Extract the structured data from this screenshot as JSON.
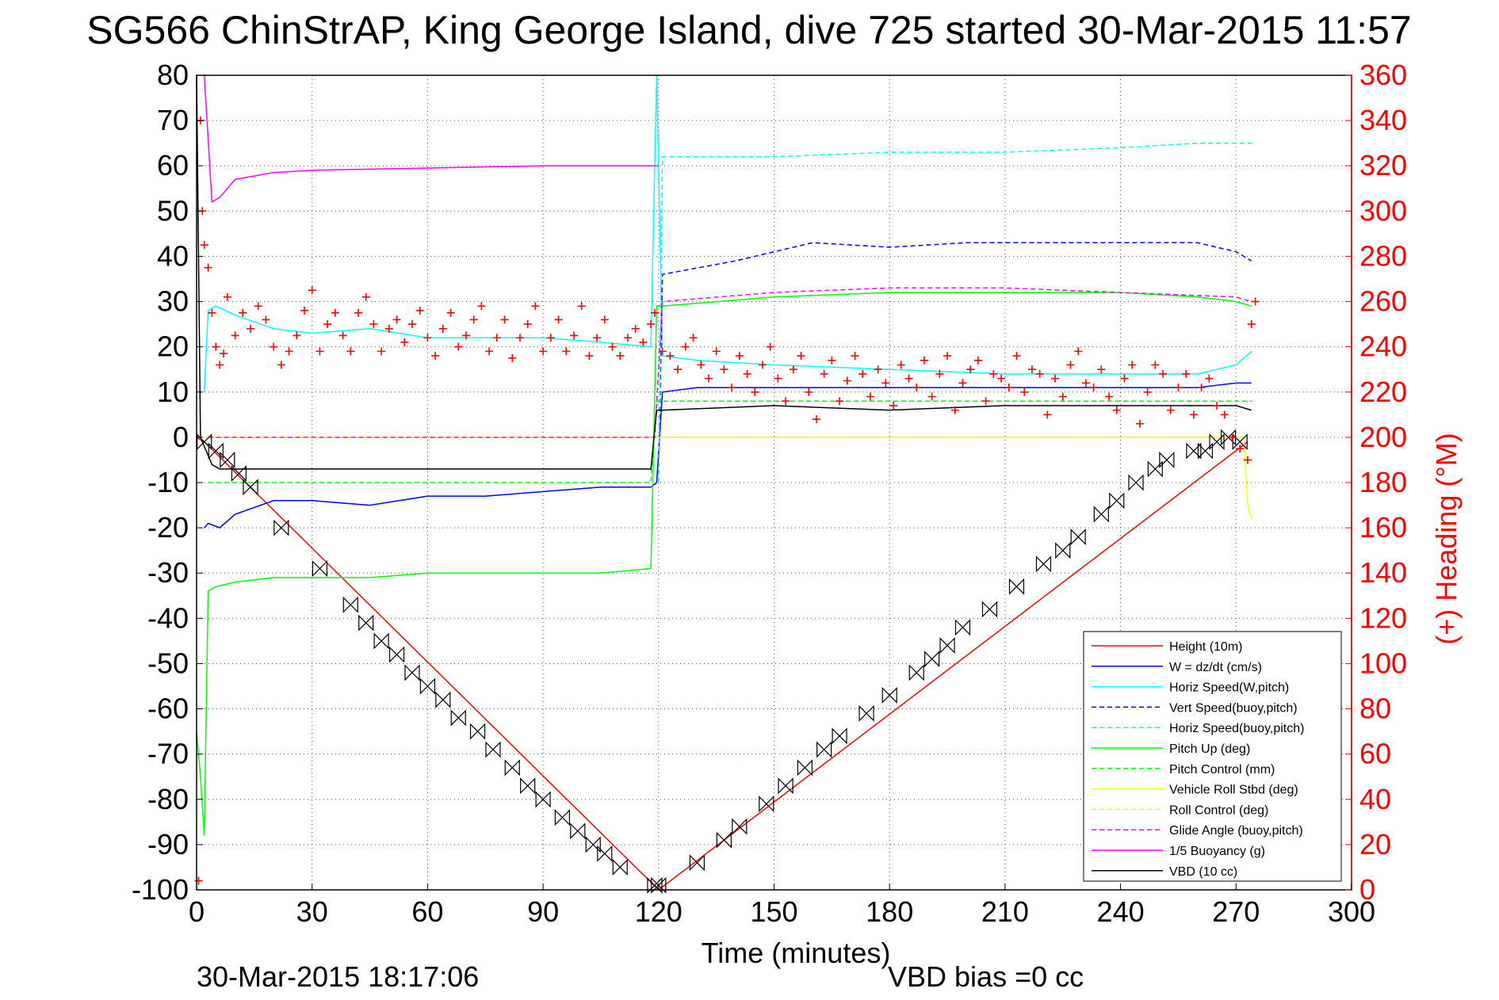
{
  "chart_data": {
    "type": "line",
    "title": "SG566 ChinStrAP, King George Island, dive 725 started 30-Mar-2015 11:57",
    "xlabel": "Time (minutes)",
    "ylabel": "",
    "y2label": "(+) Heading (°M)",
    "xlim": [
      0,
      300
    ],
    "ylim": [
      -100,
      80
    ],
    "y2lim": [
      0,
      360
    ],
    "xticks": [
      0,
      30,
      60,
      90,
      120,
      150,
      180,
      210,
      240,
      270,
      300
    ],
    "yticks": [
      80,
      70,
      60,
      50,
      40,
      30,
      20,
      10,
      0,
      -10,
      -20,
      -30,
      -40,
      -50,
      -60,
      -70,
      -80,
      -90,
      -100
    ],
    "y2ticks": [
      360,
      340,
      320,
      300,
      280,
      260,
      240,
      220,
      200,
      180,
      160,
      140,
      120,
      100,
      80,
      60,
      40,
      20,
      0
    ],
    "grid": true,
    "legend_position": "lower-right",
    "footer_left": "30-Mar-2015 18:17:06",
    "footer_right": "VBD bias =0 cc",
    "colors": {
      "height": "#ff0000",
      "w": "#0000ff",
      "horiz_speed": "#00ffff",
      "pitch": "#00ff00",
      "roll": "#ffff00",
      "buoyancy": "#ff00ff",
      "vbd": "#000000",
      "heading": "#ff0000"
    },
    "series": [
      {
        "name": "Height (10m)",
        "color": "#ff0000",
        "dash": "",
        "x": [
          0,
          2,
          120,
          273
        ],
        "y": [
          0,
          -1,
          -100,
          -1
        ]
      },
      {
        "name": "W = dz/dt (cm/s)",
        "color": "#0000ff",
        "dash": "",
        "x": [
          2,
          3,
          6,
          10,
          20,
          30,
          45,
          60,
          75,
          90,
          105,
          118,
          119.5,
          121,
          130,
          150,
          180,
          210,
          240,
          260,
          270,
          274
        ],
        "y": [
          -20,
          -19,
          -20,
          -17,
          -14,
          -14,
          -15,
          -13,
          -13,
          -12,
          -11,
          -11,
          -10,
          10,
          11,
          11,
          11,
          11,
          11,
          11,
          12,
          12
        ]
      },
      {
        "name": "Horiz Speed(W,pitch)",
        "color": "#00ffff",
        "dash": "",
        "x": [
          2,
          3,
          5,
          10,
          20,
          30,
          45,
          60,
          75,
          90,
          105,
          118,
          119.5,
          121,
          130,
          150,
          180,
          210,
          240,
          260,
          270,
          274
        ],
        "y": [
          10,
          28,
          29,
          27,
          24,
          23,
          24,
          22,
          22,
          22,
          21,
          20,
          80,
          18,
          17,
          16,
          15,
          14,
          14,
          14,
          16,
          19
        ]
      },
      {
        "name": "Vert Speed(buoy,pitch)",
        "color": "#0000ff",
        "dash": "6 4",
        "x": [
          120,
          121,
          140,
          160,
          180,
          200,
          220,
          240,
          260,
          270,
          274
        ],
        "y": [
          -10,
          36,
          39,
          43,
          42,
          43,
          43,
          43,
          43,
          41,
          39
        ]
      },
      {
        "name": "Horiz Speed(buoy,pitch)",
        "color": "#00ffff",
        "dash": "6 4",
        "x": [
          120,
          121,
          150,
          180,
          210,
          240,
          260,
          270,
          274
        ],
        "y": [
          -10,
          62,
          62,
          63,
          63,
          64,
          65,
          65,
          65
        ]
      },
      {
        "name": "Pitch Up (deg)",
        "color": "#00ff00",
        "dash": "",
        "x": [
          0,
          1,
          2,
          3,
          5,
          10,
          20,
          30,
          45,
          60,
          75,
          90,
          105,
          118,
          119.5,
          121,
          150,
          180,
          210,
          240,
          260,
          270,
          274
        ],
        "y": [
          -65,
          -75,
          -88,
          -34,
          -33,
          -32,
          -31,
          -31,
          -31,
          -30,
          -30,
          -30,
          -30,
          -29,
          29,
          29,
          31,
          32,
          32,
          32,
          31,
          30,
          29
        ]
      },
      {
        "name": "Pitch Control (mm)",
        "color": "#00ff00",
        "dash": "6 4",
        "x": [
          3,
          20,
          60,
          118,
          119.5,
          121,
          180,
          240,
          274
        ],
        "y": [
          -10,
          -10,
          -10,
          -10,
          8,
          8,
          8,
          8,
          8
        ]
      },
      {
        "name": "Vehicle Roll Stbd (deg)",
        "color": "#ffff00",
        "dash": "",
        "x": [
          2,
          272,
          273,
          274
        ],
        "y": [
          0,
          0,
          -15,
          -18
        ]
      },
      {
        "name": "Roll Control (deg)",
        "color": "#ffff00",
        "dash": "6 4",
        "x": [
          2,
          272
        ],
        "y": [
          0,
          0
        ]
      },
      {
        "name": "Glide Angle (buoy,pitch)",
        "color": "#ff00ff",
        "dash": "6 4",
        "x": [
          3,
          119,
          121,
          150,
          180,
          210,
          240,
          270,
          274
        ],
        "y": [
          0,
          0,
          30,
          32,
          33,
          33,
          32,
          31,
          30
        ]
      },
      {
        "name": "1/5 Buoyancy (g)",
        "color": "#ff00ff",
        "dash": "",
        "x": [
          2,
          4,
          6,
          10,
          20,
          30,
          60,
          90,
          119,
          120
        ],
        "y": [
          80,
          52,
          53,
          57,
          58.5,
          59,
          59.5,
          60,
          60,
          60
        ]
      },
      {
        "name": "VBD (10 cc)",
        "color": "#000000",
        "dash": "",
        "x": [
          0,
          1,
          2,
          4,
          6,
          30,
          60,
          90,
          118,
          119.5,
          121,
          150,
          180,
          210,
          240,
          270,
          274
        ],
        "y": [
          80,
          0,
          -2,
          -6,
          -7,
          -7,
          -7,
          -7,
          -7,
          6,
          6,
          7,
          6,
          7,
          7,
          7,
          6
        ]
      }
    ],
    "heading_points": {
      "name": "(+) Heading (°M)",
      "axis": "right",
      "marker": "+",
      "x": [
        0.5,
        1,
        1.5,
        2,
        3,
        4,
        5,
        6,
        7,
        8,
        10,
        12,
        14,
        16,
        18,
        20,
        22,
        24,
        26,
        28,
        30,
        32,
        34,
        36,
        38,
        40,
        42,
        44,
        46,
        48,
        50,
        52,
        54,
        56,
        58,
        60,
        62,
        64,
        66,
        68,
        70,
        72,
        74,
        76,
        78,
        80,
        82,
        84,
        86,
        88,
        90,
        92,
        94,
        96,
        98,
        100,
        102,
        104,
        106,
        108,
        110,
        112,
        114,
        116,
        118,
        119,
        121,
        123,
        125,
        127,
        129,
        131,
        133,
        135,
        137,
        139,
        141,
        143,
        145,
        147,
        149,
        151,
        153,
        155,
        157,
        159,
        161,
        163,
        165,
        167,
        169,
        171,
        173,
        175,
        177,
        179,
        181,
        183,
        185,
        187,
        189,
        191,
        193,
        195,
        197,
        199,
        201,
        203,
        205,
        207,
        209,
        211,
        213,
        215,
        217,
        219,
        221,
        223,
        225,
        227,
        229,
        231,
        233,
        235,
        237,
        239,
        241,
        243,
        245,
        247,
        249,
        251,
        253,
        255,
        257,
        259,
        261,
        263,
        265,
        267,
        269,
        271,
        273,
        274,
        275
      ],
      "y": [
        4,
        340,
        300,
        285,
        275,
        255,
        240,
        232,
        237,
        262,
        245,
        255,
        248,
        258,
        252,
        240,
        232,
        238,
        245,
        256,
        265,
        238,
        250,
        255,
        245,
        238,
        255,
        262,
        250,
        238,
        248,
        252,
        242,
        250,
        256,
        244,
        236,
        248,
        255,
        240,
        245,
        252,
        258,
        238,
        244,
        252,
        235,
        244,
        250,
        258,
        238,
        244,
        252,
        238,
        245,
        258,
        236,
        244,
        252,
        240,
        236,
        244,
        248,
        242,
        250,
        255,
        238,
        236,
        230,
        240,
        244,
        232,
        226,
        238,
        230,
        222,
        236,
        228,
        220,
        232,
        240,
        226,
        216,
        230,
        236,
        220,
        208,
        228,
        234,
        216,
        225,
        236,
        228,
        218,
        230,
        224,
        214,
        232,
        226,
        222,
        234,
        218,
        228,
        236,
        212,
        224,
        230,
        234,
        216,
        228,
        226,
        222,
        236,
        220,
        230,
        228,
        210,
        226,
        218,
        232,
        238,
        224,
        222,
        230,
        218,
        212,
        226,
        232,
        206,
        220,
        232,
        228,
        212,
        222,
        228,
        210,
        222,
        226,
        214,
        210,
        200,
        195,
        190,
        250,
        260
      ]
    },
    "symbol_markers": {
      "marker": "triangle-bowtie",
      "x": [
        2,
        5,
        8,
        11,
        14,
        22,
        32,
        40,
        44,
        48,
        52,
        56,
        60,
        64,
        68,
        73,
        77,
        82,
        86,
        90,
        95,
        99,
        103,
        106,
        110,
        119,
        120,
        130,
        137,
        141,
        148,
        153,
        158,
        163,
        167,
        174,
        180,
        187,
        191,
        195,
        199,
        206,
        213,
        220,
        225,
        229,
        235,
        239,
        244,
        249,
        252,
        259,
        262,
        265,
        268,
        271
      ],
      "y": [
        -1,
        -3,
        -5,
        -8,
        -11,
        -20,
        -29,
        -37,
        -41,
        -45,
        -48,
        -52,
        -55,
        -58,
        -62,
        -65,
        -69,
        -73,
        -77,
        -80,
        -84,
        -87,
        -90,
        -92,
        -95,
        -99,
        -99,
        -94,
        -89,
        -86,
        -81,
        -77,
        -73,
        -69,
        -66,
        -61,
        -57,
        -52,
        -49,
        -46,
        -42,
        -38,
        -33,
        -28,
        -25,
        -22,
        -17,
        -14,
        -10,
        -7,
        -5,
        -3,
        -3,
        -1,
        0,
        -1
      ]
    }
  }
}
